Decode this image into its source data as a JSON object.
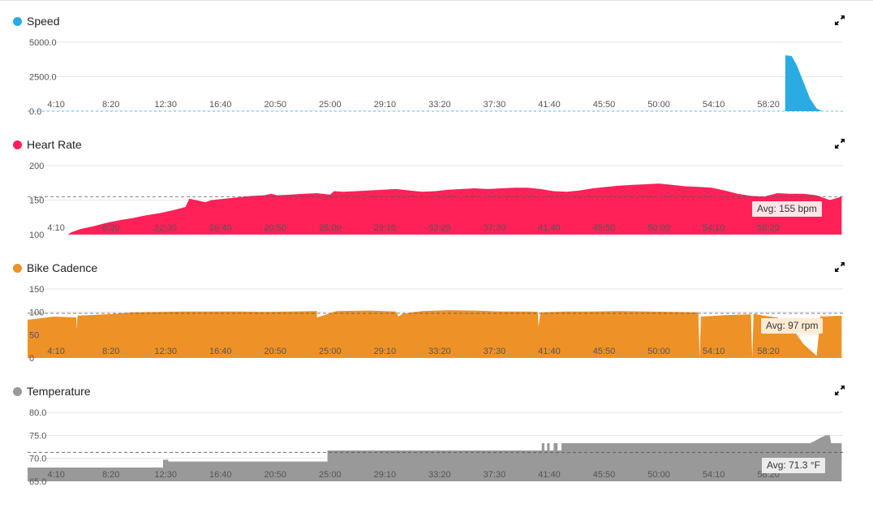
{
  "panels": [
    {
      "title": "Speed",
      "color": "#2aace2",
      "avg_label": "",
      "avg_bg": "",
      "expand_icon": "expand-icon"
    },
    {
      "title": "Heart Rate",
      "color": "#ff2158",
      "avg_label": "Avg: 155 bpm",
      "avg_bg": "#ffe4e8",
      "expand_icon": "expand-icon"
    },
    {
      "title": "Bike Cadence",
      "color": "#ee9227",
      "avg_label": "Avg: 97 rpm",
      "avg_bg": "#fdebd3",
      "expand_icon": "expand-icon"
    },
    {
      "title": "Temperature",
      "color": "#999999",
      "avg_label": "Avg: 71.3 °F",
      "avg_bg": "#ececec",
      "expand_icon": "expand-icon"
    }
  ],
  "chart_data": [
    {
      "type": "area",
      "title": "Speed",
      "x_unit": "minutes",
      "x_tick_labels": [
        "4:10",
        "8:20",
        "12:30",
        "16:40",
        "20:50",
        "25:00",
        "29:10",
        "33:20",
        "37:30",
        "41:40",
        "45:50",
        "50:00",
        "54:10",
        "58:20"
      ],
      "x_tick_values": [
        4.1667,
        8.3333,
        12.5,
        16.6667,
        20.8333,
        25,
        29.1667,
        33.3333,
        37.5,
        41.6667,
        45.8333,
        50,
        54.1667,
        58.3333
      ],
      "xlim": [
        2,
        64
      ],
      "y_tick_labels": [
        "0.0",
        "2500.0",
        "5000.0"
      ],
      "y_tick_values": [
        0,
        2500,
        5000
      ],
      "ylim": [
        0,
        5000
      ],
      "color": "#2aace2",
      "series": [
        {
          "x": [
            2,
            59.6,
            59.62,
            60.1,
            60.5,
            61,
            61.5,
            62,
            62.4
          ],
          "y": [
            5,
            5,
            4050,
            4000,
            3300,
            2100,
            900,
            200,
            0
          ]
        }
      ]
    },
    {
      "type": "area",
      "title": "Heart Rate",
      "x_unit": "minutes",
      "x_tick_labels": [
        "4:10",
        "8:20",
        "12:30",
        "16:40",
        "20:50",
        "25:00",
        "29:10",
        "33:20",
        "37:30",
        "41:40",
        "45:50",
        "50:00",
        "54:10",
        "58:20"
      ],
      "x_tick_values": [
        4.1667,
        8.3333,
        12.5,
        16.6667,
        20.8333,
        25,
        29.1667,
        33.3333,
        37.5,
        41.6667,
        45.8333,
        50,
        54.1667,
        58.3333
      ],
      "xlim": [
        2,
        64
      ],
      "y_tick_labels": [
        "100",
        "150",
        "200"
      ],
      "y_tick_values": [
        100,
        150,
        200
      ],
      "ylim": [
        100,
        200
      ],
      "avg": 155,
      "avg_label": "Avg: 155 bpm",
      "color": "#ff2158",
      "series": [
        {
          "x": [
            5.05,
            5.3,
            6,
            7,
            8,
            9,
            10,
            11,
            12,
            13,
            14,
            14.3,
            15,
            15.5,
            16,
            17,
            18,
            19,
            20,
            20.5,
            21,
            22,
            23,
            24,
            25,
            25.3,
            26,
            27,
            28,
            29,
            30,
            31,
            32,
            33,
            34,
            35,
            36,
            37,
            38,
            39,
            40,
            41,
            42,
            43,
            44,
            45,
            46,
            47,
            48,
            49,
            50,
            51,
            52,
            53,
            54,
            55,
            56,
            57,
            58,
            59,
            60,
            61,
            62,
            63,
            63.9
          ],
          "y": [
            100,
            103,
            108,
            112,
            117,
            121,
            124,
            128,
            131,
            135,
            140,
            152,
            149,
            147,
            150,
            152,
            154,
            156,
            157,
            159,
            157,
            158,
            159,
            160,
            158,
            163,
            162,
            163,
            164,
            165,
            166,
            164,
            162,
            163,
            165,
            166,
            167,
            166,
            167,
            168,
            168,
            166,
            163,
            162,
            164,
            167,
            169,
            171,
            172,
            173,
            174,
            172,
            170,
            169,
            168,
            164,
            159,
            156,
            155,
            160,
            159,
            159,
            157,
            150,
            155
          ]
        }
      ]
    },
    {
      "type": "area",
      "title": "Bike Cadence",
      "x_unit": "minutes",
      "x_tick_labels": [
        "4:10",
        "8:20",
        "12:30",
        "16:40",
        "20:50",
        "25:00",
        "29:10",
        "33:20",
        "37:30",
        "41:40",
        "45:50",
        "50:00",
        "54:10",
        "58:20"
      ],
      "x_tick_values": [
        4.1667,
        8.3333,
        12.5,
        16.6667,
        20.8333,
        25,
        29.1667,
        33.3333,
        37.5,
        41.6667,
        45.8333,
        50,
        54.1667,
        58.3333
      ],
      "xlim": [
        2,
        64
      ],
      "y_tick_labels": [
        "0",
        "50",
        "100",
        "150"
      ],
      "y_tick_values": [
        0,
        50,
        100,
        150
      ],
      "ylim": [
        0,
        150
      ],
      "avg": 97,
      "avg_label": "Avg: 97 rpm",
      "color": "#ee9227",
      "series": [
        {
          "x": [
            2,
            4,
            5.7,
            5.72,
            5.8,
            8,
            10,
            12,
            14,
            16,
            18,
            20,
            22,
            24,
            24,
            25.5,
            28,
            30,
            30.2,
            30.5,
            32,
            34,
            36,
            38,
            40,
            40.8,
            40.85,
            41,
            43,
            45,
            47,
            49,
            51,
            53,
            53.1,
            53.2,
            55,
            57,
            57.1,
            57.2,
            58,
            59,
            60,
            61,
            62,
            62.3,
            62.4,
            63.9
          ],
          "y": [
            83,
            90,
            88,
            62,
            92,
            95,
            99,
            100,
            101,
            101,
            101,
            100,
            101,
            102,
            88,
            102,
            103,
            101,
            90,
            96,
            102,
            104,
            103,
            101,
            101,
            100,
            68,
            99,
            101,
            101,
            102,
            101,
            100,
            99,
            0,
            90,
            93,
            95,
            0,
            96,
            92,
            88,
            70,
            30,
            5,
            92,
            90,
            92
          ]
        }
      ]
    },
    {
      "type": "area",
      "title": "Temperature",
      "x_unit": "minutes",
      "x_tick_labels": [
        "4:10",
        "8:20",
        "12:30",
        "16:40",
        "20:50",
        "25:00",
        "29:10",
        "33:20",
        "37:30",
        "41:40",
        "45:50",
        "50:00",
        "54:10",
        "58:20"
      ],
      "x_tick_values": [
        4.1667,
        8.3333,
        12.5,
        16.6667,
        20.8333,
        25,
        29.1667,
        33.3333,
        37.5,
        41.6667,
        45.8333,
        50,
        54.1667,
        58.3333
      ],
      "xlim": [
        2,
        64
      ],
      "y_tick_labels": [
        "65.0",
        "70.0",
        "75.0",
        "80.0"
      ],
      "y_tick_values": [
        65,
        70,
        75,
        80
      ],
      "ylim": [
        65,
        80
      ],
      "avg": 71.3,
      "avg_label": "Avg: 71.3 °F",
      "color": "#999999",
      "series": [
        {
          "x": [
            2,
            12.3,
            12.3,
            12.7,
            12.7,
            24.8,
            24.8,
            41.1,
            41.1,
            41.3,
            41.3,
            41.5,
            41.5,
            41.7,
            41.7,
            42.0,
            42.0,
            42.3,
            42.3,
            42.6,
            42.6,
            61.5,
            61.8,
            62.3,
            62.7,
            63.0,
            63.1,
            63.9
          ],
          "y": [
            68,
            68,
            69.7,
            69.7,
            69.3,
            69.3,
            71.7,
            71.7,
            73.3,
            73.3,
            71.7,
            71.7,
            73.3,
            73.3,
            71.7,
            71.7,
            73.3,
            73.3,
            71.7,
            71.7,
            73.3,
            73.3,
            73.7,
            74.5,
            75.0,
            75.0,
            73.3,
            73.3
          ]
        }
      ]
    }
  ]
}
